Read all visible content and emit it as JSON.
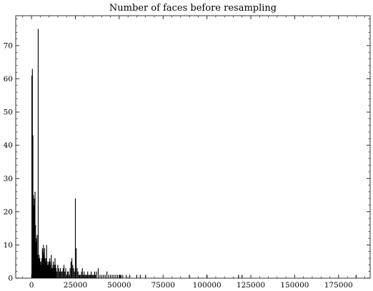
{
  "chart_data": {
    "type": "bar",
    "title": "Number of faces before resampling",
    "xlabel": "",
    "ylabel": "",
    "xlim": [
      -9000,
      193000
    ],
    "ylim": [
      0,
      79
    ],
    "xticks": [
      0,
      25000,
      50000,
      75000,
      100000,
      125000,
      150000,
      175000
    ],
    "xtick_labels": [
      "0",
      "25000",
      "50000",
      "75000",
      "100000",
      "125000",
      "150000",
      "175000"
    ],
    "yticks": [
      0,
      10,
      20,
      30,
      40,
      50,
      60,
      70
    ],
    "ytick_labels": [
      "0",
      "10",
      "20",
      "30",
      "40",
      "50",
      "60",
      "70"
    ],
    "bar_width": 380,
    "bar_color": "#000000",
    "x": [
      200,
      500,
      800,
      1100,
      1400,
      1700,
      2000,
      2300,
      2600,
      2900,
      3200,
      3500,
      3800,
      4100,
      4400,
      4700,
      5000,
      5300,
      5600,
      5900,
      6200,
      6500,
      6800,
      7100,
      7400,
      7700,
      8000,
      8300,
      8600,
      8900,
      9200,
      9500,
      9800,
      10100,
      10400,
      10700,
      11000,
      11300,
      11600,
      11900,
      12200,
      12500,
      12800,
      13100,
      13400,
      13700,
      14000,
      14500,
      15000,
      15500,
      16000,
      16500,
      17000,
      17500,
      18000,
      18500,
      19000,
      19500,
      20000,
      20500,
      21000,
      21500,
      22000,
      22500,
      23000,
      23500,
      24000,
      24500,
      25000,
      25500,
      26000,
      26500,
      27000,
      27500,
      28000,
      28500,
      29000,
      29500,
      30000,
      30500,
      31000,
      31500,
      32000,
      32500,
      33000,
      33500,
      34000,
      34500,
      35000,
      35500,
      36000,
      36500,
      37000,
      38000,
      39000,
      40000,
      41000,
      42000,
      43000,
      44000,
      45000,
      46000,
      47000,
      48000,
      49000,
      50000,
      50500,
      51000,
      52000,
      54000,
      56000,
      60000,
      62000,
      65000,
      90000,
      100000,
      118000,
      120000,
      185000
    ],
    "values": [
      61,
      63,
      43,
      25,
      22,
      24,
      26,
      16,
      11,
      12,
      13,
      7,
      75,
      6,
      7,
      6,
      5,
      4,
      5,
      6,
      9,
      8,
      10,
      7,
      9,
      6,
      5,
      6,
      10,
      5,
      4,
      4,
      5,
      5,
      6,
      4,
      5,
      7,
      3,
      3,
      4,
      5,
      3,
      4,
      6,
      4,
      3,
      2,
      4,
      3,
      2,
      3,
      2,
      2,
      3,
      4,
      2,
      3,
      1,
      2,
      2,
      1,
      3,
      5,
      6,
      4,
      3,
      2,
      24,
      9,
      3,
      2,
      1,
      1,
      1,
      2,
      3,
      1,
      2,
      1,
      1,
      1,
      2,
      1,
      1,
      1,
      2,
      1,
      1,
      1,
      2,
      1,
      2,
      3,
      1,
      1,
      1,
      1,
      2,
      1,
      1,
      1,
      1,
      1,
      1,
      1,
      1,
      1,
      1,
      1,
      1,
      1,
      1,
      1,
      1,
      1,
      1,
      1,
      1
    ]
  }
}
